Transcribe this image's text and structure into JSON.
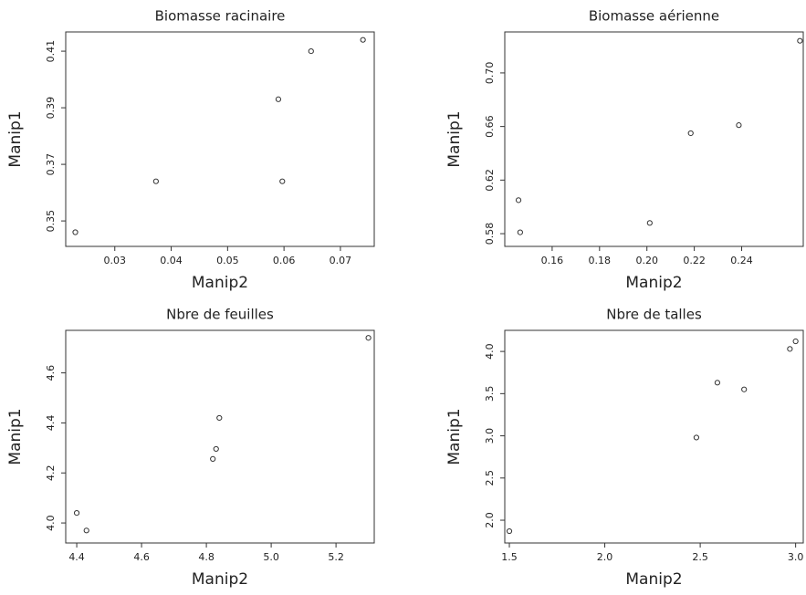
{
  "chart_data": [
    {
      "type": "scatter",
      "title": "Biomasse racinaire",
      "x_label": "Manip2",
      "y_label": "Manip1",
      "x": [
        0.023,
        0.0373,
        0.059,
        0.0597,
        0.0648,
        0.074
      ],
      "series": [
        {
          "values": [
            0.346,
            0.364,
            0.393,
            0.364,
            0.41,
            0.414
          ],
          "color": "#333333"
        }
      ],
      "xlim": [
        0.0213,
        0.076
      ],
      "xticks": [
        0.03,
        0.04,
        0.05,
        0.06,
        0.07
      ],
      "ylim": [
        0.341,
        0.4168
      ],
      "yticks": [
        0.35,
        0.37,
        0.39,
        0.41
      ]
    },
    {
      "type": "scatter",
      "title": "Biomasse aérienne",
      "x_label": "Manip2",
      "y_label": "Manip1",
      "x": [
        0.1458,
        0.1465,
        0.2012,
        0.2185,
        0.2388,
        0.2646
      ],
      "series": [
        {
          "values": [
            0.605,
            0.581,
            0.588,
            0.655,
            0.661,
            0.724
          ],
          "color": "#333333"
        }
      ],
      "xlim": [
        0.14,
        0.266
      ],
      "xticks": [
        0.16,
        0.18,
        {
          "value": 0.2,
          "label": "0.20"
        },
        0.22,
        0.24
      ],
      "ylim": [
        0.5705,
        0.7306
      ],
      "yticks": [
        0.58,
        0.62,
        0.66,
        {
          "value": 0.7,
          "label": "0.70"
        }
      ]
    },
    {
      "type": "scatter",
      "title": "Nbre de feuilles",
      "x_label": "Manip2",
      "y_label": "Manip1",
      "x": [
        4.4,
        4.43,
        4.82,
        4.83,
        4.84,
        5.3
      ],
      "series": [
        {
          "values": [
            4.04,
            3.97,
            4.256,
            4.296,
            4.42,
            4.74
          ],
          "color": "#333333"
        }
      ],
      "xlim": [
        4.366,
        5.318
      ],
      "xticks": [
        4.4,
        4.6,
        4.8,
        {
          "value": 5,
          "label": "5.0"
        },
        5.2
      ],
      "ylim": [
        3.92,
        4.77
      ],
      "yticks": [
        {
          "value": 4,
          "label": "4.0"
        },
        4.2,
        4.4,
        4.6
      ]
    },
    {
      "type": "scatter",
      "title": "Nbre de talles",
      "x_label": "Manip2",
      "y_label": "Manip1",
      "x": [
        1.5,
        2.48,
        2.59,
        2.73,
        2.97,
        3.0
      ],
      "series": [
        {
          "values": [
            1.87,
            2.98,
            3.63,
            3.55,
            4.03,
            4.12
          ],
          "color": "#333333"
        }
      ],
      "xlim": [
        1.476,
        3.04
      ],
      "xticks": [
        1.5,
        {
          "value": 2,
          "label": "2.0"
        },
        2.5,
        {
          "value": 3,
          "label": "3.0"
        }
      ],
      "ylim": [
        1.73,
        4.25
      ],
      "yticks": [
        {
          "value": 2,
          "label": "2.0"
        },
        2.5,
        {
          "value": 3,
          "label": "3.0"
        },
        3.5,
        {
          "value": 4,
          "label": "4.0"
        }
      ]
    }
  ]
}
